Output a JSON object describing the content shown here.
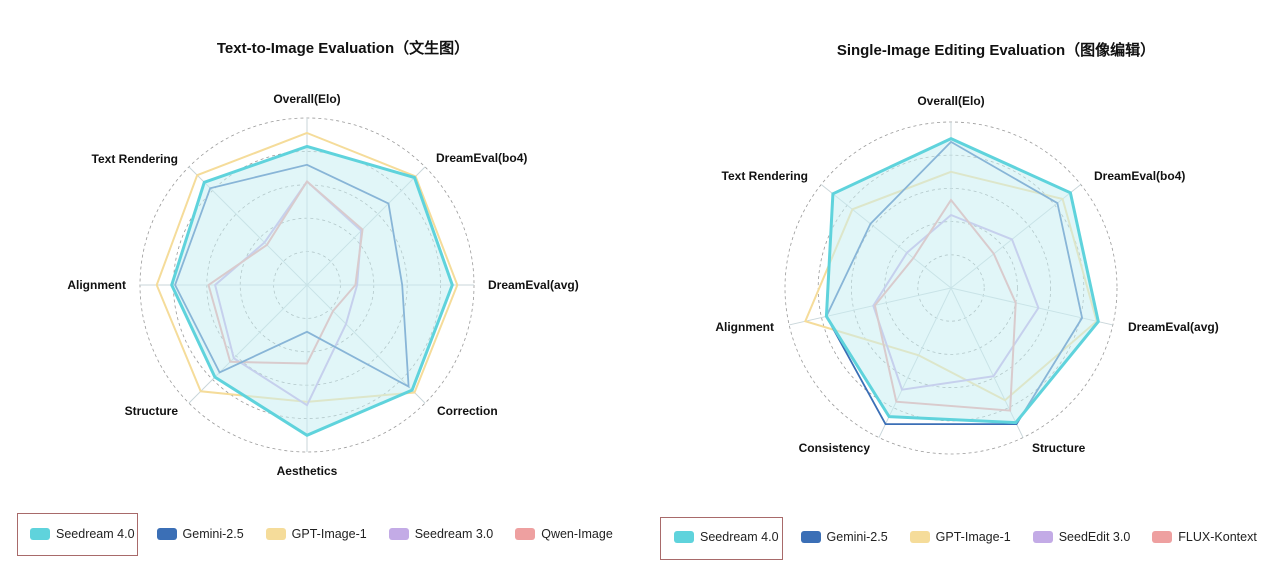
{
  "colors": {
    "seedream4": "#5fd3dc",
    "gemini": "#3b6fb6",
    "gpt": "#f5dc9a",
    "purple": "#c3abe6",
    "pink": "#eea0a0",
    "fill": "#c8eef3",
    "grid": "#9a9a9a",
    "spoke": "#c9d6da",
    "highlight_box": "#a86a6a"
  },
  "chart_data": [
    {
      "type": "radar",
      "title": "Text-to-Image Evaluation（文生图）",
      "axes": [
        "Overall(Elo)",
        "DreamEval(bo4)",
        "DreamEval(avg)",
        "Correction",
        "Aesthetics",
        "Structure",
        "Alignment",
        "Text Rendering"
      ],
      "rlim": [
        0,
        1
      ],
      "rings": 5,
      "grid": true,
      "legend_position": "bottom",
      "highlighted_series": "Seedream 4.0",
      "series": [
        {
          "name": "GPT-Image-1",
          "color_key": "gpt",
          "values": [
            0.91,
            0.92,
            0.9,
            0.91,
            0.7,
            0.9,
            0.9,
            0.93
          ]
        },
        {
          "name": "Seedream 3.0",
          "color_key": "purple",
          "values": [
            0.62,
            0.46,
            0.3,
            0.33,
            0.72,
            0.62,
            0.55,
            0.36
          ]
        },
        {
          "name": "Qwen-Image",
          "color_key": "pink",
          "values": [
            0.62,
            0.47,
            0.29,
            0.22,
            0.47,
            0.65,
            0.59,
            0.34
          ]
        },
        {
          "name": "Gemini-2.5",
          "color_key": "gemini",
          "values": [
            0.72,
            0.69,
            0.57,
            0.86,
            0.28,
            0.74,
            0.79,
            0.82
          ]
        },
        {
          "name": "Seedream 4.0",
          "color_key": "seedream4",
          "fill": true,
          "values": [
            0.83,
            0.91,
            0.87,
            0.89,
            0.9,
            0.78,
            0.81,
            0.87
          ]
        }
      ],
      "legend": [
        "Seedream 4.0",
        "Gemini-2.5",
        "GPT-Image-1",
        "Seedream 3.0",
        "Qwen-Image"
      ]
    },
    {
      "type": "radar",
      "title": "Single-Image Editing Evaluation（图像编辑）",
      "axes": [
        "Overall(Elo)",
        "DreamEval(bo4)",
        "DreamEval(avg)",
        "Structure",
        "Consistency",
        "Alignment",
        "Text Rendering"
      ],
      "rlim": [
        0,
        1
      ],
      "rings": 5,
      "grid": true,
      "legend_position": "bottom",
      "highlighted_series": "Seedream 4.0",
      "series": [
        {
          "name": "GPT-Image-1",
          "color_key": "gpt",
          "values": [
            0.7,
            0.86,
            0.9,
            0.75,
            0.45,
            0.9,
            0.76
          ]
        },
        {
          "name": "SeedEdit 3.0",
          "color_key": "purple",
          "values": [
            0.44,
            0.47,
            0.54,
            0.59,
            0.68,
            0.48,
            0.34
          ]
        },
        {
          "name": "FLUX-Kontext",
          "color_key": "pink",
          "values": [
            0.53,
            0.33,
            0.4,
            0.82,
            0.76,
            0.47,
            0.29
          ]
        },
        {
          "name": "Gemini-2.5",
          "color_key": "gemini",
          "values": [
            0.88,
            0.82,
            0.81,
            0.91,
            0.91,
            0.77,
            0.62
          ]
        },
        {
          "name": "Seedream 4.0",
          "color_key": "seedream4",
          "fill": true,
          "values": [
            0.9,
            0.92,
            0.91,
            0.9,
            0.86,
            0.77,
            0.91
          ]
        }
      ],
      "legend": [
        "Seedream 4.0",
        "Gemini-2.5",
        "GPT-Image-1",
        "SeedEdit 3.0",
        "FLUX-Kontext"
      ]
    }
  ],
  "legend_colors": {
    "left": [
      "seedream4",
      "gemini",
      "gpt",
      "purple",
      "pink"
    ],
    "right": [
      "seedream4",
      "gemini",
      "gpt",
      "purple",
      "pink"
    ]
  }
}
